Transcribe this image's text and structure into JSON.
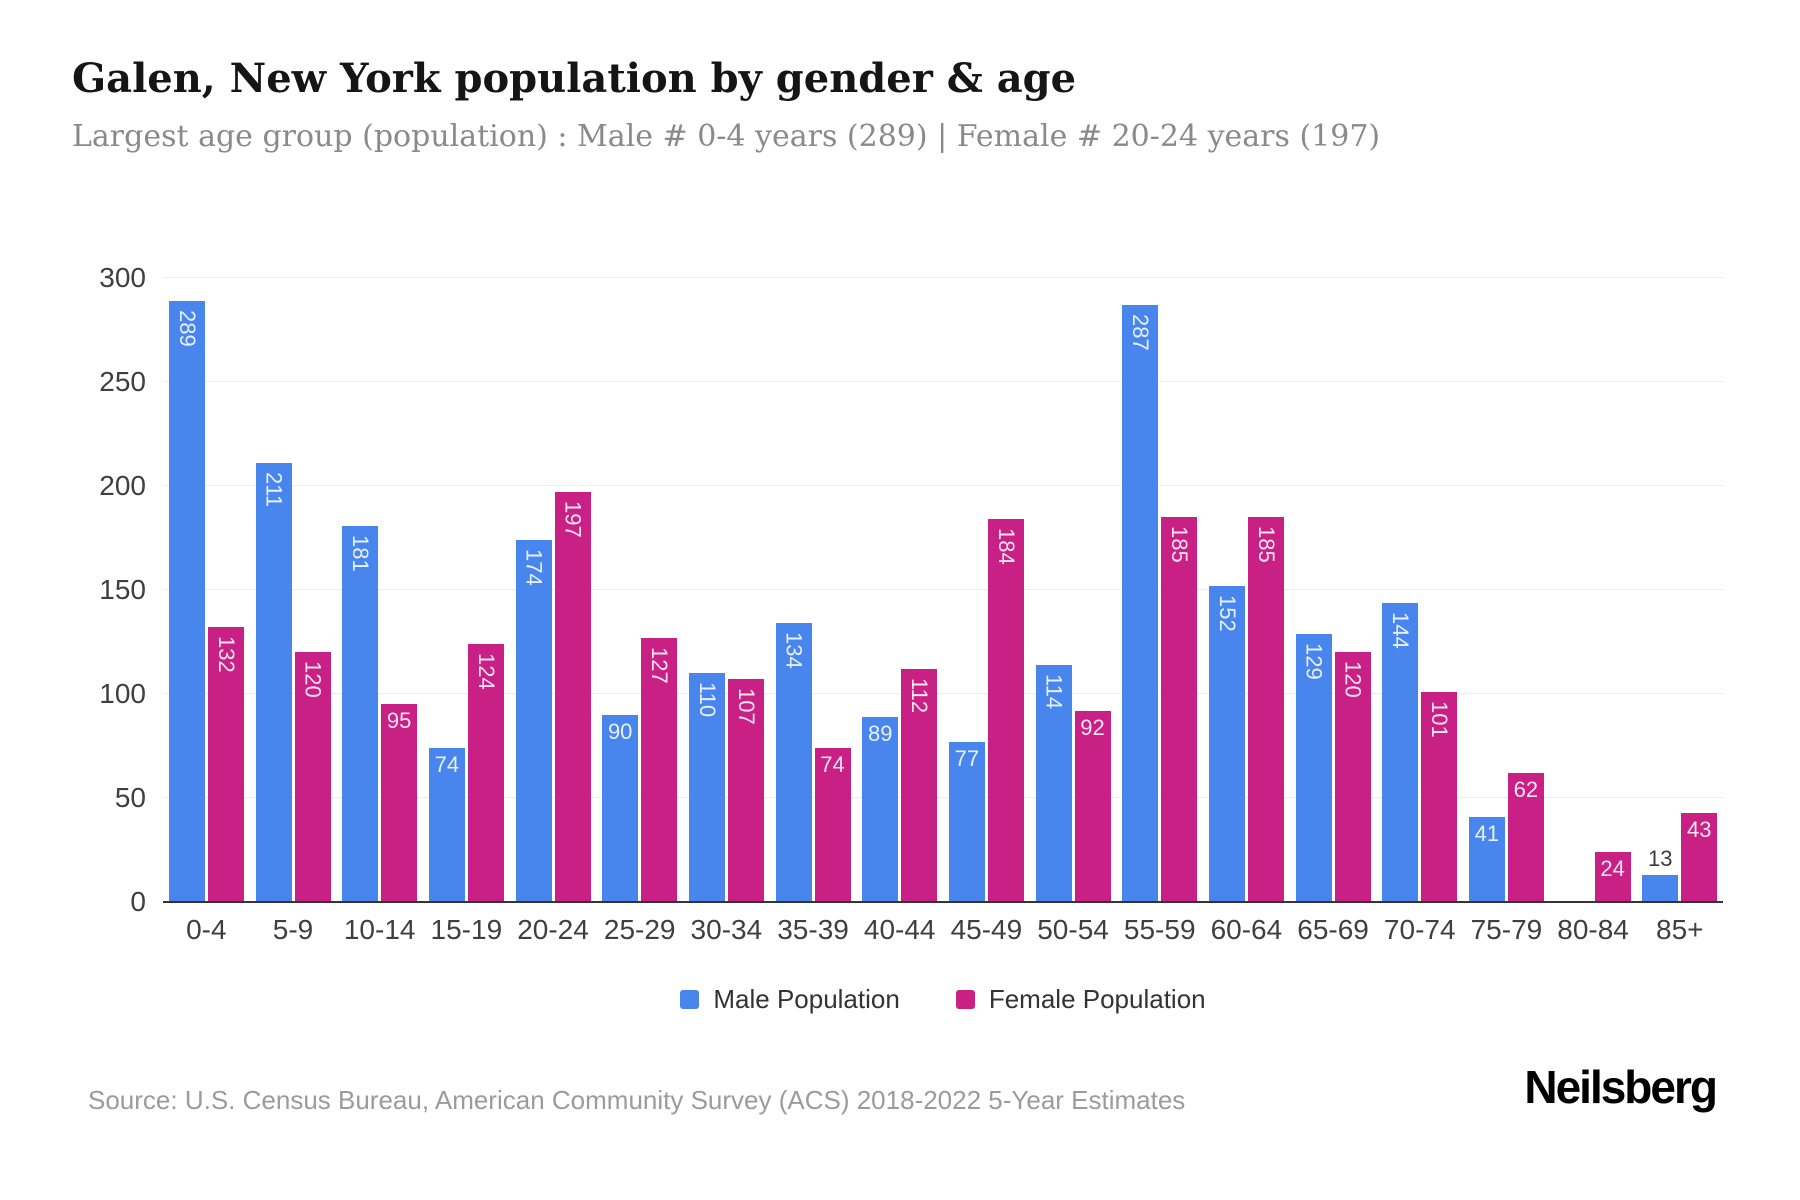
{
  "header": {
    "title": "Galen, New York population by gender & age",
    "subtitle": "Largest age group (population) : Male # 0-4 years (289) | Female # 20-24 years (197)"
  },
  "chart_data": {
    "type": "bar",
    "title": "Galen, New York population by gender & age",
    "categories": [
      "0-4",
      "5-9",
      "10-14",
      "15-19",
      "20-24",
      "25-29",
      "30-34",
      "35-39",
      "40-44",
      "45-49",
      "50-54",
      "55-59",
      "60-64",
      "65-69",
      "70-74",
      "75-79",
      "80-84",
      "85+"
    ],
    "series": [
      {
        "name": "Male Population",
        "color": "#4886EE",
        "values": [
          289,
          211,
          181,
          74,
          174,
          90,
          110,
          134,
          89,
          77,
          114,
          287,
          152,
          129,
          144,
          41,
          0,
          13
        ]
      },
      {
        "name": "Female Population",
        "color": "#C82084",
        "values": [
          132,
          120,
          95,
          124,
          197,
          127,
          107,
          74,
          112,
          184,
          92,
          185,
          185,
          120,
          101,
          62,
          24,
          43
        ]
      }
    ],
    "xlabel": "",
    "ylabel": "",
    "ylim": [
      0,
      300
    ],
    "yticks": [
      0,
      50,
      100,
      150,
      200,
      250,
      300
    ],
    "grid": true,
    "legend_position": "bottom"
  },
  "footer": {
    "source": "Source: U.S. Census Bureau, American Community Survey (ACS) 2018-2022 5-Year Estimates",
    "brand": "Neilsberg"
  }
}
